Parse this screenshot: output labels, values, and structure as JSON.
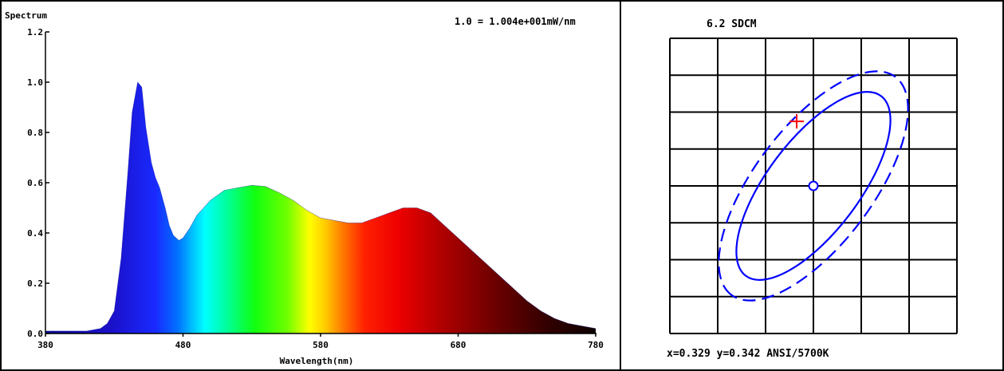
{
  "spectrum": {
    "title": "Spectrum",
    "scale_note": "1.0 = 1.004e+001mW/nm",
    "xlabel": "Wavelength(nm)",
    "chart_data": {
      "type": "area",
      "title": "Spectrum",
      "xlabel": "Wavelength(nm)",
      "ylabel": "",
      "xlim": [
        380,
        780
      ],
      "ylim": [
        0,
        1.2
      ],
      "x_ticks": [
        "380",
        "480",
        "580",
        "680",
        "780"
      ],
      "y_ticks": [
        "0.0",
        "0.2",
        "0.4",
        "0.6",
        "0.8",
        "1.0",
        "1.2"
      ],
      "grid": false,
      "fill": "spectral rainbow gradient (violet-blue to deep red)",
      "x": [
        380,
        400,
        410,
        420,
        425,
        430,
        435,
        440,
        443,
        447,
        450,
        453,
        457,
        460,
        463,
        467,
        470,
        473,
        477,
        480,
        485,
        490,
        500,
        510,
        520,
        530,
        540,
        550,
        560,
        570,
        580,
        590,
        600,
        610,
        620,
        630,
        640,
        650,
        660,
        670,
        680,
        690,
        700,
        710,
        720,
        730,
        740,
        750,
        760,
        770,
        780
      ],
      "values": [
        0.01,
        0.01,
        0.01,
        0.02,
        0.04,
        0.09,
        0.3,
        0.65,
        0.88,
        1.0,
        0.98,
        0.82,
        0.68,
        0.62,
        0.58,
        0.5,
        0.43,
        0.39,
        0.37,
        0.38,
        0.42,
        0.47,
        0.53,
        0.57,
        0.58,
        0.59,
        0.585,
        0.56,
        0.53,
        0.49,
        0.46,
        0.45,
        0.44,
        0.44,
        0.46,
        0.48,
        0.5,
        0.5,
        0.48,
        0.43,
        0.38,
        0.33,
        0.28,
        0.23,
        0.18,
        0.13,
        0.09,
        0.06,
        0.04,
        0.03,
        0.02
      ]
    }
  },
  "sdcm": {
    "title": "6.2  SDCM",
    "readout": "x=0.329 y=0.342 ANSI/5700K",
    "chart_data": {
      "type": "scatter",
      "title": "6.2  SDCM",
      "xlabel": "",
      "ylabel": "",
      "grid": true,
      "grid_columns": 6,
      "grid_rows": 8,
      "x_range": [
        -3,
        3
      ],
      "y_range": [
        -4,
        4
      ],
      "center": {
        "x": 0,
        "y": 0,
        "marker": "circle",
        "color": "#0000ff"
      },
      "measured_point": {
        "x": -0.35,
        "y": 1.75,
        "marker": "plus",
        "color": "#ff0000"
      },
      "ellipses": [
        {
          "cx": 0,
          "cy": 0,
          "rx": 2.35,
          "ry": 1.25,
          "rotation_deg": 127,
          "style": "solid",
          "color": "#0000ff"
        },
        {
          "cx": 0,
          "cy": 0,
          "rx": 2.85,
          "ry": 1.6,
          "rotation_deg": 127,
          "style": "dashed",
          "color": "#0000ff"
        }
      ]
    }
  }
}
